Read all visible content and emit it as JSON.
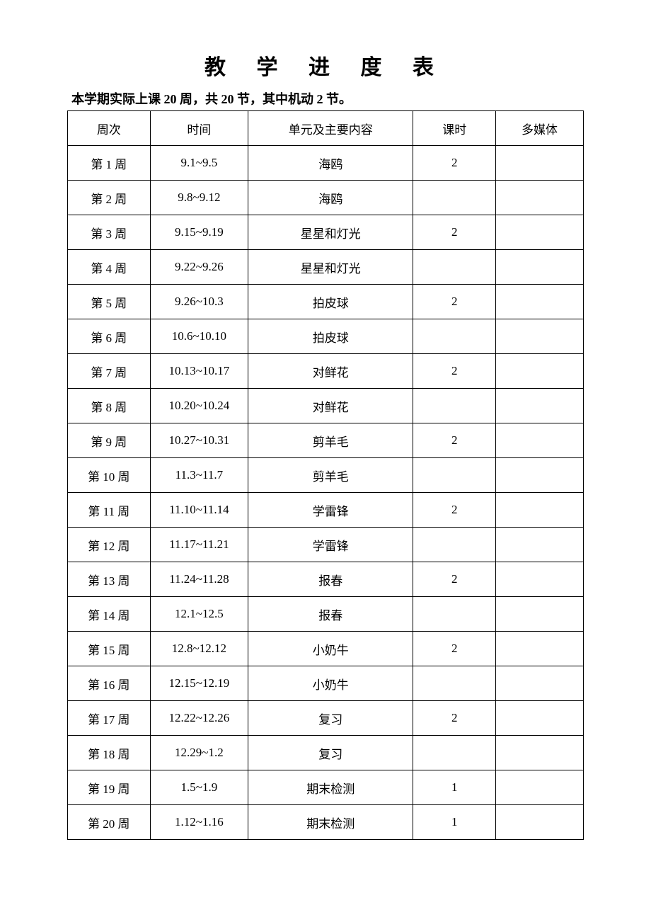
{
  "title": "教 学 进 度 表",
  "subtitle": "本学期实际上课 20 周，共 20 节，其中机动 2 节。",
  "table": {
    "columns": [
      {
        "label": "周次",
        "class": "col-week"
      },
      {
        "label": "时间",
        "class": "col-time"
      },
      {
        "label": "单元及主要内容",
        "class": "col-content"
      },
      {
        "label": "课时",
        "class": "col-hours"
      },
      {
        "label": "多媒体",
        "class": "col-media"
      }
    ],
    "rows": [
      {
        "week": "第 1 周",
        "time": "9.1~9.5",
        "content": "海鸥",
        "hours": "2",
        "media": ""
      },
      {
        "week": "第 2 周",
        "time": "9.8~9.12",
        "content": "海鸥",
        "hours": "",
        "media": ""
      },
      {
        "week": "第 3 周",
        "time": "9.15~9.19",
        "content": "星星和灯光",
        "hours": "2",
        "media": ""
      },
      {
        "week": "第 4 周",
        "time": "9.22~9.26",
        "content": "星星和灯光",
        "hours": "",
        "media": ""
      },
      {
        "week": "第 5 周",
        "time": "9.26~10.3",
        "content": "拍皮球",
        "hours": "2",
        "media": ""
      },
      {
        "week": "第 6 周",
        "time": "10.6~10.10",
        "content": "拍皮球",
        "hours": "",
        "media": ""
      },
      {
        "week": "第 7 周",
        "time": "10.13~10.17",
        "content": "对鲜花",
        "hours": "2",
        "media": ""
      },
      {
        "week": "第 8 周",
        "time": "10.20~10.24",
        "content": "对鲜花",
        "hours": "",
        "media": ""
      },
      {
        "week": "第 9 周",
        "time": "10.27~10.31",
        "content": "剪羊毛",
        "hours": "2",
        "media": ""
      },
      {
        "week": "第 10 周",
        "time": "11.3~11.7",
        "content": "剪羊毛",
        "hours": "",
        "media": ""
      },
      {
        "week": "第 11 周",
        "time": "11.10~11.14",
        "content": "学雷锋",
        "hours": "2",
        "media": ""
      },
      {
        "week": "第 12 周",
        "time": "11.17~11.21",
        "content": "学雷锋",
        "hours": "",
        "media": ""
      },
      {
        "week": "第 13 周",
        "time": "11.24~11.28",
        "content": "报春",
        "hours": "2",
        "media": ""
      },
      {
        "week": "第 14 周",
        "time": "12.1~12.5",
        "content": "报春",
        "hours": "",
        "media": ""
      },
      {
        "week": "第 15 周",
        "time": "12.8~12.12",
        "content": "小奶牛",
        "hours": "2",
        "media": ""
      },
      {
        "week": "第 16 周",
        "time": "12.15~12.19",
        "content": "小奶牛",
        "hours": "",
        "media": ""
      },
      {
        "week": "第 17 周",
        "time": "12.22~12.26",
        "content": "复习",
        "hours": "2",
        "media": ""
      },
      {
        "week": "第 18 周",
        "time": "12.29~1.2",
        "content": "复习",
        "hours": "",
        "media": ""
      },
      {
        "week": "第 19 周",
        "time": "1.5~1.9",
        "content": "期末检测",
        "hours": "1",
        "media": ""
      },
      {
        "week": "第 20 周",
        "time": "1.12~1.16",
        "content": "期末检测",
        "hours": "1",
        "media": ""
      }
    ]
  }
}
